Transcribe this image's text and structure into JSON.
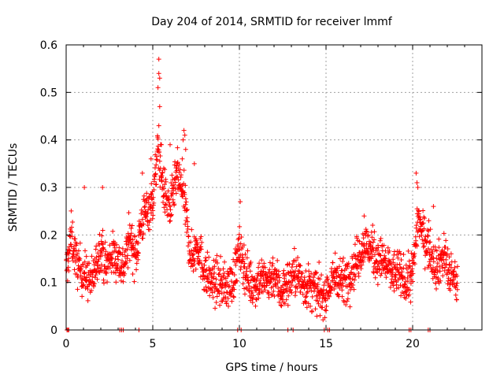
{
  "chart_data": {
    "type": "scatter",
    "title": "Day 204 of 2014, SRMTID for receiver lmmf",
    "xlabel": "GPS time / hours",
    "ylabel": "SRMTID / TECUs",
    "xlim": [
      0,
      24
    ],
    "ylim": [
      0,
      0.6
    ],
    "xticks": [
      0,
      5,
      10,
      15,
      20
    ],
    "xtick_labels": [
      "0",
      "5",
      "10",
      "15",
      "20"
    ],
    "yticks": [
      0,
      0.1,
      0.2,
      0.3,
      0.4,
      0.5,
      0.6
    ],
    "ytick_labels": [
      "0",
      "0.1",
      "0.2",
      "0.3",
      "0.4",
      "0.5",
      "0.6"
    ],
    "grid": true,
    "marker": "+",
    "color": "#ff0000",
    "series": [
      {
        "name": "lmmf",
        "envelope_x": [
          0.0,
          0.3,
          0.6,
          1.0,
          1.5,
          2.0,
          2.3,
          2.6,
          3.0,
          3.3,
          3.7,
          4.0,
          4.3,
          4.6,
          5.0,
          5.3,
          5.6,
          6.0,
          6.4,
          6.8,
          7.2,
          7.6,
          8.0,
          8.4,
          8.8,
          9.2,
          9.6,
          10.0,
          10.4,
          10.8,
          11.2,
          11.6,
          12.0,
          12.4,
          12.8,
          13.2,
          13.6,
          14.0,
          14.4,
          14.8,
          15.2,
          15.6,
          16.0,
          16.4,
          16.8,
          17.2,
          17.6,
          18.0,
          18.4,
          18.8,
          19.2,
          19.6,
          20.0,
          20.3,
          20.6,
          21.0,
          21.4,
          21.8,
          22.2,
          22.6
        ],
        "envelope_y": [
          0.12,
          0.2,
          0.14,
          0.12,
          0.1,
          0.18,
          0.13,
          0.16,
          0.15,
          0.13,
          0.2,
          0.15,
          0.22,
          0.25,
          0.27,
          0.38,
          0.3,
          0.25,
          0.33,
          0.28,
          0.15,
          0.18,
          0.12,
          0.1,
          0.1,
          0.09,
          0.1,
          0.17,
          0.12,
          0.09,
          0.11,
          0.1,
          0.12,
          0.08,
          0.1,
          0.12,
          0.1,
          0.09,
          0.08,
          0.07,
          0.09,
          0.12,
          0.1,
          0.12,
          0.15,
          0.18,
          0.17,
          0.15,
          0.14,
          0.12,
          0.12,
          0.1,
          0.12,
          0.24,
          0.2,
          0.17,
          0.13,
          0.16,
          0.11,
          0.1
        ],
        "spread": 0.05,
        "samples_per_hour": 80,
        "x_end": 22.6,
        "spikes": [
          {
            "x": 5.35,
            "y": 0.57
          },
          {
            "x": 5.35,
            "y": 0.54
          },
          {
            "x": 5.4,
            "y": 0.53
          },
          {
            "x": 5.3,
            "y": 0.51
          },
          {
            "x": 5.4,
            "y": 0.47
          },
          {
            "x": 5.35,
            "y": 0.43
          },
          {
            "x": 6.8,
            "y": 0.42
          },
          {
            "x": 6.85,
            "y": 0.41
          },
          {
            "x": 6.75,
            "y": 0.4
          },
          {
            "x": 6.9,
            "y": 0.38
          },
          {
            "x": 6.7,
            "y": 0.36
          },
          {
            "x": 6.0,
            "y": 0.39
          },
          {
            "x": 5.5,
            "y": 0.39
          },
          {
            "x": 4.9,
            "y": 0.36
          },
          {
            "x": 4.4,
            "y": 0.33
          },
          {
            "x": 7.4,
            "y": 0.35
          },
          {
            "x": 20.2,
            "y": 0.33
          },
          {
            "x": 20.25,
            "y": 0.31
          },
          {
            "x": 20.3,
            "y": 0.3
          },
          {
            "x": 1.05,
            "y": 0.3
          },
          {
            "x": 2.1,
            "y": 0.3
          },
          {
            "x": 10.05,
            "y": 0.27
          },
          {
            "x": 17.2,
            "y": 0.24
          },
          {
            "x": 21.2,
            "y": 0.26
          }
        ],
        "zero_points_x": [
          0.05,
          0.1,
          0.15,
          3.1,
          3.2,
          3.3,
          4.2,
          9.9,
          10.1,
          12.8,
          13.1,
          14.9,
          15.1,
          15.2,
          19.8,
          19.9,
          20.9,
          21.0
        ]
      }
    ]
  }
}
